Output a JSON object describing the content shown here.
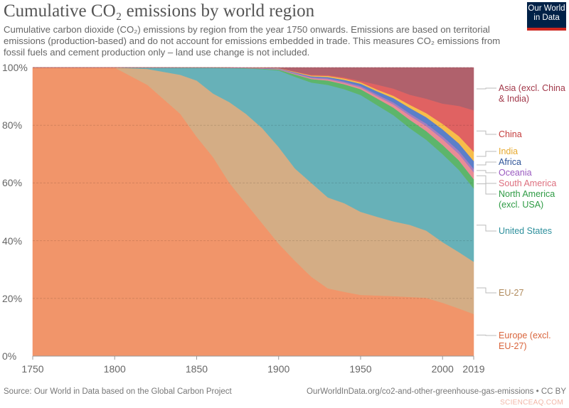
{
  "chart_data": {
    "type": "area",
    "stacked": "percent",
    "title": "Cumulative CO₂ emissions by world region",
    "subtitle": "Cumulative carbon dioxide (CO₂) emissions by region from the year 1750 onwards. Emissions are based on territorial emissions (production-based) and do not account for emissions embedded in trade. This measures CO₂ emissions from fossil fuels and cement production only – land use change is not included.",
    "x_ticks": [
      "1750",
      "1800",
      "1850",
      "1900",
      "1950",
      "2000",
      "2019"
    ],
    "y_ticks": [
      "0%",
      "20%",
      "40%",
      "60%",
      "80%",
      "100%"
    ],
    "xlim": [
      1750,
      2019
    ],
    "ylim": [
      0,
      100
    ],
    "grid": "horizontal dashed",
    "legend": "right, labels at series ends",
    "x": [
      1750,
      1800,
      1820,
      1840,
      1850,
      1860,
      1870,
      1880,
      1890,
      1900,
      1910,
      1920,
      1930,
      1940,
      1950,
      1960,
      1970,
      1980,
      1990,
      2000,
      2010,
      2019
    ],
    "series": [
      {
        "name": "Europe (excl.\nEU-27)",
        "color": "#f1956a",
        "label_color": "#d9643b",
        "values": [
          100,
          100,
          94,
          84,
          76,
          69,
          60,
          53,
          46,
          39,
          33,
          27.5,
          23.5,
          22.3,
          21.2,
          21,
          20.8,
          20.5,
          20.2,
          18.5,
          16.5,
          14.6
        ]
      },
      {
        "name": "EU-27",
        "color": "#d4ad85",
        "label_color": "#b08b5d",
        "values": [
          0,
          0,
          5.5,
          13.5,
          19.5,
          22,
          28,
          31,
          33,
          33.5,
          32,
          32.5,
          31.5,
          30.7,
          28.8,
          27.3,
          25.9,
          25,
          23.3,
          21,
          19.5,
          18.1
        ]
      },
      {
        "name": "United States",
        "color": "#67b1b8",
        "label_color": "#2c8f9c",
        "values": [
          0,
          0,
          0.5,
          2.4,
          4.4,
          8.9,
          11.8,
          15.7,
          20.4,
          26.5,
          31.8,
          34.8,
          39,
          39.5,
          40.5,
          38.7,
          36.8,
          33.5,
          31.5,
          30.5,
          28.5,
          25.4
        ]
      },
      {
        "name": "North America\n(excl. USA)",
        "color": "#5db56b",
        "label_color": "#2e9b44",
        "values": [
          0,
          0,
          0,
          0.05,
          0.05,
          0.05,
          0.1,
          0.1,
          0.2,
          0.3,
          0.8,
          1.2,
          1.5,
          1.7,
          2,
          2.3,
          2.6,
          2.9,
          3,
          3.2,
          3.3,
          3.2
        ]
      },
      {
        "name": "South America",
        "color": "#e98c96",
        "label_color": "#dd6f7e",
        "values": [
          0,
          0,
          0,
          0,
          0,
          0,
          0,
          0,
          0.05,
          0.1,
          0.2,
          0.3,
          0.4,
          0.5,
          0.6,
          0.8,
          1.1,
          1.4,
          1.7,
          2,
          2.2,
          2.4
        ]
      },
      {
        "name": "Oceania",
        "color": "#a57dbf",
        "label_color": "#9a5ac0",
        "values": [
          0,
          0,
          0,
          0,
          0,
          0,
          0.05,
          0.1,
          0.15,
          0.2,
          0.3,
          0.35,
          0.4,
          0.45,
          0.5,
          0.6,
          0.7,
          0.8,
          0.9,
          1,
          1.1,
          1.2
        ]
      },
      {
        "name": "Africa",
        "color": "#5b7fc9",
        "label_color": "#2f5598",
        "values": [
          0,
          0,
          0,
          0,
          0,
          0,
          0,
          0,
          0.05,
          0.1,
          0.2,
          0.3,
          0.4,
          0.6,
          0.8,
          1.1,
          1.5,
          1.9,
          2.2,
          2.4,
          2.6,
          2.7
        ]
      },
      {
        "name": "India",
        "color": "#f7bd4a",
        "label_color": "#e6a92e",
        "values": [
          0,
          0,
          0,
          0,
          0,
          0,
          0,
          0.02,
          0.05,
          0.1,
          0.2,
          0.3,
          0.4,
          0.45,
          0.5,
          0.6,
          0.8,
          1.1,
          1.4,
          1.9,
          2.5,
          3.2
        ]
      },
      {
        "name": "China",
        "color": "#e06262",
        "label_color": "#c43b3b",
        "values": [
          0,
          0,
          0,
          0,
          0,
          0,
          0,
          0,
          0,
          0.05,
          0.1,
          0.2,
          0.3,
          0.4,
          0.5,
          1.7,
          2.5,
          3.5,
          5,
          7,
          10.5,
          14.4
        ]
      },
      {
        "name": "Asia (excl. China\n& India)",
        "color": "#b0616c",
        "label_color": "#a2394a",
        "values": [
          0,
          0,
          0,
          0.05,
          0.05,
          0.05,
          0.05,
          0.08,
          0.1,
          0.15,
          1.4,
          2.55,
          2.6,
          3.4,
          4.6,
          5.9,
          7.3,
          9.4,
          10.8,
          12.5,
          13.3,
          14.8
        ]
      }
    ]
  },
  "logo": {
    "line1": "Our World",
    "line2": "in Data"
  },
  "footer": {
    "source": "Source: Our World in Data based on the Global Carbon Project",
    "url": "OurWorldInData.org/co2-and-other-greenhouse-gas-emissions • CC BY",
    "watermark": "SCIENCEAQ.COM"
  }
}
